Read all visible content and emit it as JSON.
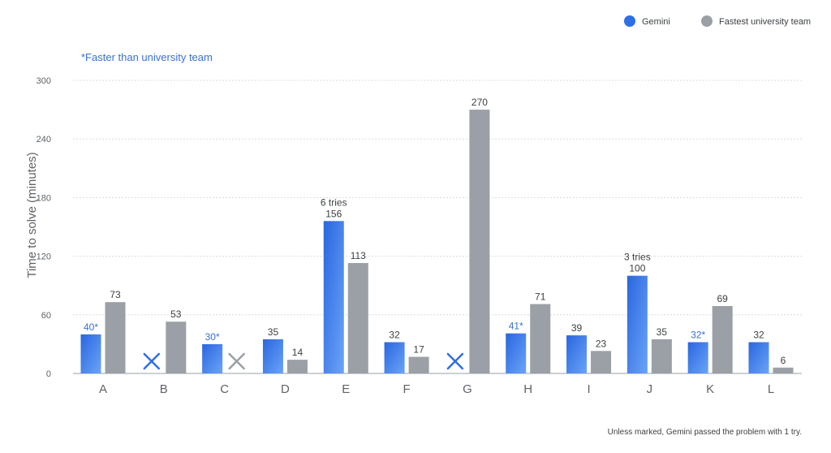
{
  "legend": {
    "gemini_label": "Gemini",
    "university_label": "Fastest university team"
  },
  "faster_note": "*Faster than university team",
  "footnote": "Unless marked, Gemini passed the problem with 1 try.",
  "colors": {
    "gemini": "#2f6fe4",
    "gemini_light": "#5a95f5",
    "university": "#9aa0a6",
    "star_text": "#3a6fd8",
    "fail_mark_gemini": "#2f6fe4",
    "fail_mark_university": "#9aa0a6",
    "gridline": "#dadce0",
    "axis": "#9aa0a6"
  },
  "chart_data": {
    "type": "bar",
    "ylabel": "Time to solve (minutes)",
    "xlabel": "",
    "ylim": [
      0,
      300
    ],
    "yticks": [
      0,
      60,
      120,
      180,
      240,
      300
    ],
    "grid": true,
    "legend_position": "top-right",
    "categories": [
      "A",
      "B",
      "C",
      "D",
      "E",
      "F",
      "G",
      "H",
      "I",
      "J",
      "K",
      "L"
    ],
    "series": [
      {
        "name": "Gemini",
        "values": [
          40,
          null,
          30,
          35,
          156,
          32,
          null,
          41,
          39,
          100,
          32,
          32
        ],
        "labels": [
          "40*",
          "",
          "30*",
          "35",
          "156",
          "32",
          "",
          "41*",
          "39",
          "100",
          "32*",
          "32"
        ],
        "notes": [
          "",
          "",
          "",
          "",
          "6 tries",
          "",
          "",
          "",
          "",
          "3 tries",
          "",
          ""
        ],
        "failed": [
          false,
          true,
          false,
          false,
          false,
          false,
          true,
          false,
          false,
          false,
          false,
          false
        ]
      },
      {
        "name": "Fastest university team",
        "values": [
          73,
          53,
          null,
          14,
          113,
          17,
          270,
          71,
          23,
          35,
          69,
          6
        ],
        "labels": [
          "73",
          "53",
          "",
          "14",
          "113",
          "17",
          "270",
          "71",
          "23",
          "35",
          "69",
          "6"
        ],
        "failed": [
          false,
          false,
          true,
          false,
          false,
          false,
          false,
          false,
          false,
          false,
          false,
          false
        ]
      }
    ]
  }
}
